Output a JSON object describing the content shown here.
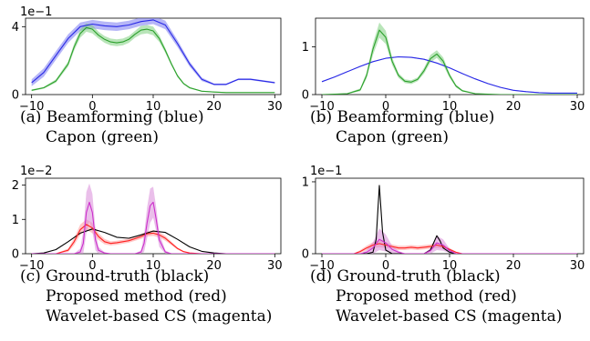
{
  "chart_data": [
    {
      "type": "line",
      "id": "a",
      "caption_lines": [
        "(a) Beamforming (blue)",
        "Capon (green)"
      ],
      "scale_label": "1e−1",
      "xlim": [
        -11,
        31
      ],
      "ylim": [
        0,
        4.5
      ],
      "xticks": [
        -10,
        0,
        10,
        20,
        30
      ],
      "xtick_labels": [
        "−10",
        "0",
        "10",
        "20",
        "30"
      ],
      "yticks": [
        0,
        4
      ],
      "ytick_labels": [
        "0",
        "4"
      ],
      "series": [
        {
          "color": "#2828e6",
          "band_color": "#7a7af0",
          "x": [
            -10,
            -8,
            -6,
            -4,
            -2,
            0,
            2,
            4,
            6,
            8,
            10,
            12,
            14,
            16,
            18,
            20,
            22,
            24,
            26,
            28,
            30
          ],
          "y": [
            0.7,
            1.3,
            2.3,
            3.3,
            4.0,
            4.15,
            4.05,
            4.0,
            4.1,
            4.3,
            4.4,
            4.1,
            3.0,
            1.8,
            0.9,
            0.6,
            0.6,
            0.9,
            0.9,
            0.8,
            0.7
          ],
          "band": [
            0.2,
            0.25,
            0.25,
            0.25,
            0.25,
            0.25,
            0.25,
            0.25,
            0.25,
            0.25,
            0.25,
            0.25,
            0.2,
            0.15,
            0.1,
            0.05,
            0.05,
            0.05,
            0.05,
            0.05,
            0.05
          ]
        },
        {
          "color": "#2ca02c",
          "band_color": "#7fcf7f",
          "x": [
            -10,
            -8,
            -6,
            -4,
            -3,
            -2,
            -1,
            0,
            1,
            2,
            3,
            4,
            5,
            6,
            7,
            8,
            9,
            10,
            11,
            12,
            13,
            14,
            15,
            16,
            18,
            20,
            22,
            25,
            30
          ],
          "y": [
            0.25,
            0.4,
            0.8,
            1.8,
            2.8,
            3.6,
            3.95,
            3.85,
            3.5,
            3.25,
            3.1,
            3.05,
            3.1,
            3.25,
            3.55,
            3.8,
            3.85,
            3.75,
            3.3,
            2.6,
            1.8,
            1.1,
            0.65,
            0.4,
            0.2,
            0.15,
            0.12,
            0.12,
            0.12
          ],
          "band": [
            0.05,
            0.05,
            0.1,
            0.15,
            0.2,
            0.25,
            0.25,
            0.25,
            0.2,
            0.2,
            0.2,
            0.2,
            0.2,
            0.2,
            0.2,
            0.25,
            0.25,
            0.25,
            0.2,
            0.15,
            0.1,
            0.08,
            0.05,
            0.05,
            0.03,
            0.03,
            0.03,
            0.03,
            0.03
          ]
        }
      ]
    },
    {
      "type": "line",
      "id": "b",
      "caption_lines": [
        "(b) Beamforming (blue)",
        "Capon (green)"
      ],
      "scale_label": "",
      "xlim": [
        -11,
        31
      ],
      "ylim": [
        0,
        1.6
      ],
      "xticks": [
        -10,
        0,
        10,
        20,
        30
      ],
      "xtick_labels": [
        "−10",
        "0",
        "10",
        "20",
        "30"
      ],
      "yticks": [
        0,
        1
      ],
      "ytick_labels": [
        "0",
        "1"
      ],
      "series": [
        {
          "color": "#2828e6",
          "band_color": "#7a7af0",
          "x": [
            -10,
            -8,
            -6,
            -4,
            -2,
            0,
            2,
            4,
            6,
            8,
            10,
            12,
            14,
            16,
            18,
            20,
            22,
            24,
            26,
            28,
            30
          ],
          "y": [
            0.27,
            0.37,
            0.48,
            0.59,
            0.69,
            0.76,
            0.79,
            0.78,
            0.74,
            0.66,
            0.56,
            0.44,
            0.33,
            0.23,
            0.15,
            0.09,
            0.06,
            0.04,
            0.03,
            0.03,
            0.03
          ],
          "band": [
            0.01,
            0.01,
            0.01,
            0.01,
            0.01,
            0.01,
            0.01,
            0.01,
            0.01,
            0.01,
            0.01,
            0.01,
            0.01,
            0.01,
            0.01,
            0.01,
            0.01,
            0.01,
            0.01,
            0.01,
            0.01
          ]
        },
        {
          "color": "#2ca02c",
          "band_color": "#7fcf7f",
          "x": [
            -10,
            -6,
            -4,
            -3,
            -2,
            -1,
            0,
            1,
            2,
            3,
            4,
            5,
            6,
            7,
            8,
            9,
            10,
            11,
            12,
            14,
            18,
            22,
            30
          ],
          "y": [
            0.0,
            0.02,
            0.1,
            0.4,
            0.95,
            1.35,
            1.2,
            0.7,
            0.4,
            0.28,
            0.26,
            0.32,
            0.5,
            0.75,
            0.85,
            0.7,
            0.4,
            0.18,
            0.08,
            0.02,
            0.0,
            0.0,
            0.0
          ],
          "band": [
            0.0,
            0.01,
            0.03,
            0.06,
            0.12,
            0.16,
            0.14,
            0.08,
            0.05,
            0.04,
            0.04,
            0.04,
            0.06,
            0.08,
            0.08,
            0.08,
            0.05,
            0.03,
            0.02,
            0.01,
            0.0,
            0.0,
            0.0
          ]
        }
      ]
    },
    {
      "type": "line",
      "id": "c",
      "caption_lines": [
        "(c) Ground-truth (black)",
        "Proposed method (red)",
        "Wavelet-based CS (magenta)"
      ],
      "scale_label": "1e−2",
      "xlim": [
        -11,
        31
      ],
      "ylim": [
        0,
        2.2
      ],
      "xticks": [
        -10,
        0,
        10,
        20,
        30
      ],
      "xtick_labels": [
        "−10",
        "0",
        "10",
        "20",
        "30"
      ],
      "yticks": [
        0,
        1,
        2
      ],
      "ytick_labels": [
        "0",
        "1",
        "2"
      ],
      "series": [
        {
          "color": "#000000",
          "x": [
            -10,
            -8,
            -6,
            -4,
            -2,
            0,
            2,
            4,
            6,
            8,
            10,
            12,
            14,
            16,
            18,
            20,
            22,
            24,
            30
          ],
          "y": [
            0.0,
            0.02,
            0.12,
            0.35,
            0.6,
            0.72,
            0.62,
            0.48,
            0.45,
            0.55,
            0.66,
            0.62,
            0.42,
            0.2,
            0.07,
            0.02,
            0.0,
            0.0,
            0.0
          ]
        },
        {
          "color": "#ff2020",
          "band_color": "#ff9a9a",
          "x": [
            -10,
            -6,
            -4,
            -3,
            -2,
            -1,
            0,
            1,
            2,
            3,
            4,
            6,
            8,
            9,
            10,
            11,
            12,
            13,
            14,
            15,
            16,
            18,
            22,
            30
          ],
          "y": [
            0.0,
            0.0,
            0.1,
            0.35,
            0.7,
            0.85,
            0.75,
            0.5,
            0.35,
            0.3,
            0.32,
            0.38,
            0.5,
            0.58,
            0.6,
            0.55,
            0.45,
            0.3,
            0.15,
            0.06,
            0.02,
            0.0,
            0.0,
            0.0
          ],
          "band": [
            0.0,
            0.0,
            0.05,
            0.1,
            0.15,
            0.15,
            0.15,
            0.1,
            0.08,
            0.06,
            0.06,
            0.06,
            0.07,
            0.08,
            0.08,
            0.08,
            0.07,
            0.05,
            0.03,
            0.02,
            0.0,
            0.0,
            0.0,
            0.0
          ]
        },
        {
          "color": "#cc2fcc",
          "band_color": "#d98ad9",
          "x": [
            -10,
            -3,
            -2,
            -1.5,
            -1,
            -0.5,
            0,
            0.5,
            1,
            2,
            3,
            7,
            8,
            8.5,
            9,
            9.5,
            10,
            10.5,
            11,
            12,
            13,
            30
          ],
          "y": [
            0.0,
            0.0,
            0.05,
            0.3,
            1.2,
            1.5,
            1.2,
            0.4,
            0.1,
            0.02,
            0.0,
            0.0,
            0.05,
            0.3,
            0.9,
            1.4,
            1.5,
            1.0,
            0.4,
            0.05,
            0.0,
            0.0
          ],
          "band": [
            0.0,
            0.0,
            0.1,
            0.35,
            0.6,
            0.55,
            0.55,
            0.3,
            0.1,
            0.02,
            0.0,
            0.0,
            0.05,
            0.25,
            0.45,
            0.5,
            0.45,
            0.35,
            0.2,
            0.05,
            0.0,
            0.0
          ]
        }
      ]
    },
    {
      "type": "line",
      "id": "d",
      "caption_lines": [
        "(d) Ground-truth (black)",
        "Proposed method (red)",
        "Wavelet-based CS (magenta)"
      ],
      "scale_label": "1e−1",
      "xlim": [
        -11,
        31
      ],
      "ylim": [
        0,
        1.05
      ],
      "xticks": [
        -10,
        0,
        10,
        20,
        30
      ],
      "xtick_labels": [
        "−10",
        "0",
        "10",
        "20",
        "30"
      ],
      "yticks": [
        0,
        1
      ],
      "ytick_labels": [
        "0",
        "1"
      ],
      "series": [
        {
          "color": "#000000",
          "x": [
            -10,
            -3,
            -2,
            -1.5,
            -1,
            -0.5,
            0,
            1,
            2,
            6,
            7,
            7.5,
            8,
            8.5,
            9,
            10,
            11,
            30
          ],
          "y": [
            0.0,
            0.0,
            0.02,
            0.2,
            0.95,
            0.3,
            0.05,
            0.0,
            0.0,
            0.0,
            0.05,
            0.15,
            0.25,
            0.18,
            0.08,
            0.02,
            0.0,
            0.0
          ]
        },
        {
          "color": "#ff2020",
          "band_color": "#ff9a9a",
          "x": [
            -10,
            -5,
            -4,
            -3,
            -2,
            -1,
            0,
            1,
            2,
            3,
            4,
            5,
            6,
            7,
            8,
            9,
            10,
            11,
            12,
            30
          ],
          "y": [
            0.0,
            0.0,
            0.03,
            0.08,
            0.12,
            0.14,
            0.12,
            0.1,
            0.08,
            0.08,
            0.09,
            0.08,
            0.09,
            0.1,
            0.12,
            0.1,
            0.06,
            0.02,
            0.0,
            0.0
          ],
          "band": [
            0.0,
            0.0,
            0.02,
            0.03,
            0.04,
            0.05,
            0.04,
            0.03,
            0.03,
            0.03,
            0.03,
            0.03,
            0.03,
            0.03,
            0.04,
            0.03,
            0.02,
            0.01,
            0.0,
            0.0
          ]
        },
        {
          "color": "#cc2fcc",
          "band_color": "#d98ad9",
          "x": [
            -10,
            -4,
            -3,
            -2,
            -1,
            0,
            1,
            2,
            3,
            6,
            7,
            8,
            9,
            10,
            11,
            30
          ],
          "y": [
            0.0,
            0.0,
            0.02,
            0.08,
            0.2,
            0.15,
            0.06,
            0.02,
            0.0,
            0.0,
            0.04,
            0.15,
            0.12,
            0.04,
            0.0,
            0.0
          ],
          "band": [
            0.0,
            0.0,
            0.03,
            0.08,
            0.15,
            0.12,
            0.05,
            0.02,
            0.0,
            0.0,
            0.04,
            0.1,
            0.08,
            0.03,
            0.0,
            0.0
          ]
        }
      ]
    }
  ]
}
